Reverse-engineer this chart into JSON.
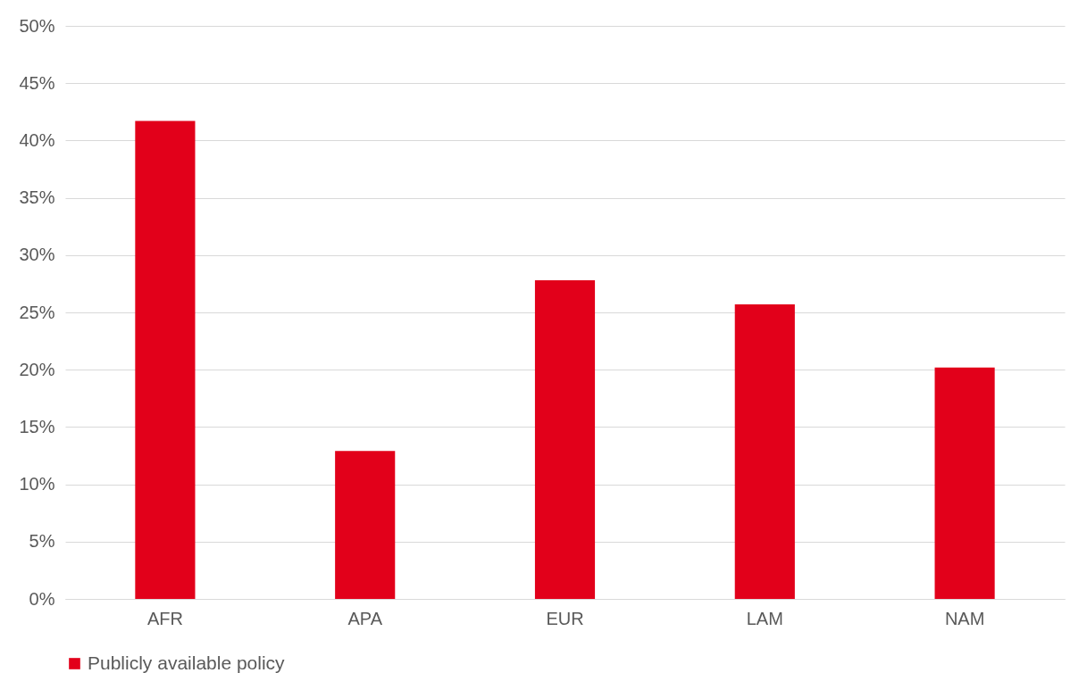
{
  "chart_data": {
    "type": "bar",
    "categories": [
      "AFR",
      "APA",
      "EUR",
      "LAM",
      "NAM"
    ],
    "series": [
      {
        "name": "Publicly available policy",
        "color": "#e2001a",
        "values": [
          41.7,
          12.9,
          27.8,
          25.7,
          20.2
        ]
      }
    ],
    "ylim": [
      0,
      50
    ],
    "yticks": [
      {
        "value": 0,
        "label": "0%"
      },
      {
        "value": 5,
        "label": "5%"
      },
      {
        "value": 10,
        "label": "10%"
      },
      {
        "value": 15,
        "label": "15%"
      },
      {
        "value": 20,
        "label": "20%"
      },
      {
        "value": 25,
        "label": "25%"
      },
      {
        "value": 30,
        "label": "30%"
      },
      {
        "value": 35,
        "label": "35%"
      },
      {
        "value": 40,
        "label": "40%"
      },
      {
        "value": 45,
        "label": "45%"
      },
      {
        "value": 50,
        "label": "50%"
      }
    ],
    "grid": "y",
    "legend": "bottom"
  }
}
